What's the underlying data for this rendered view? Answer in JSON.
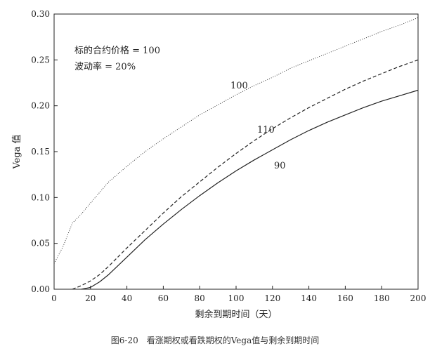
{
  "chart_data": {
    "type": "line",
    "xlabel": "剩余到期时间（天）",
    "ylabel": "Vega 值",
    "xlim": [
      0,
      200
    ],
    "ylim": [
      0,
      0.3
    ],
    "x_ticks": [
      "0",
      "20",
      "40",
      "60",
      "80",
      "100",
      "120",
      "140",
      "160",
      "180",
      "200"
    ],
    "y_ticks": [
      "0.00",
      "0.05",
      "0.10",
      "0.15",
      "0.20",
      "0.25",
      "0.30"
    ],
    "annotations": [
      "标的合约价格 = 100",
      "波动率 = 20%"
    ],
    "grid": false,
    "series": [
      {
        "name": "100",
        "style": "dotted",
        "x": [
          0,
          5,
          10,
          15,
          20,
          30,
          40,
          50,
          60,
          70,
          80,
          90,
          100,
          110,
          120,
          130,
          140,
          150,
          160,
          170,
          180,
          190,
          200
        ],
        "values": [
          0.028,
          0.047,
          0.072,
          0.082,
          0.094,
          0.117,
          0.134,
          0.15,
          0.164,
          0.177,
          0.19,
          0.201,
          0.212,
          0.222,
          0.231,
          0.241,
          0.249,
          0.257,
          0.265,
          0.273,
          0.281,
          0.288,
          0.296
        ]
      },
      {
        "name": "110",
        "style": "dashed",
        "x": [
          10,
          15,
          20,
          25,
          30,
          40,
          50,
          60,
          70,
          80,
          90,
          100,
          110,
          120,
          130,
          140,
          150,
          160,
          170,
          180,
          190,
          200
        ],
        "values": [
          0.0,
          0.004,
          0.009,
          0.016,
          0.025,
          0.045,
          0.064,
          0.083,
          0.101,
          0.117,
          0.133,
          0.148,
          0.162,
          0.175,
          0.187,
          0.198,
          0.208,
          0.218,
          0.227,
          0.235,
          0.243,
          0.25
        ]
      },
      {
        "name": "90",
        "style": "solid",
        "x": [
          15,
          20,
          25,
          30,
          40,
          50,
          60,
          70,
          80,
          90,
          100,
          110,
          120,
          130,
          140,
          150,
          160,
          170,
          180,
          190,
          200
        ],
        "values": [
          0.0,
          0.002,
          0.008,
          0.016,
          0.035,
          0.054,
          0.071,
          0.087,
          0.102,
          0.116,
          0.129,
          0.141,
          0.152,
          0.163,
          0.173,
          0.182,
          0.19,
          0.198,
          0.205,
          0.211,
          0.217
        ]
      }
    ],
    "caption": "图6-20　看涨期权或看跌期权的Vega值与剩余到期时间"
  }
}
